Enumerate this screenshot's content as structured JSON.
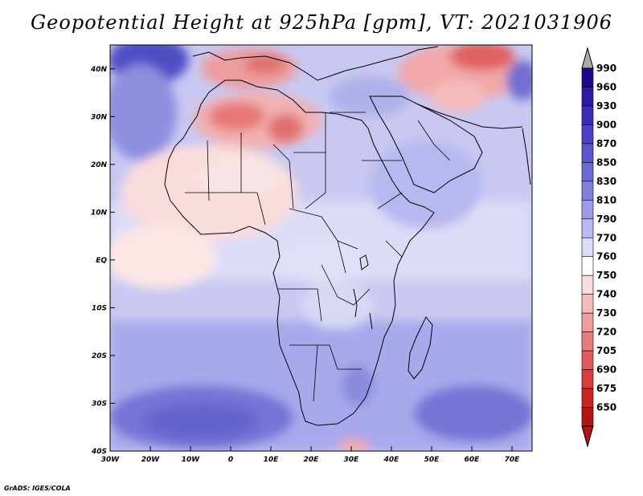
{
  "title": "Geopotential Height at 925hPa [gpm], VT: 2021031906",
  "credit": "GrADS: IGES/COLA",
  "map": {
    "lon_range": [
      -30,
      75
    ],
    "lat_range": [
      -40,
      45
    ],
    "x_ticks": [
      "30W",
      "20W",
      "10W",
      "0",
      "10E",
      "20E",
      "30E",
      "40E",
      "50E",
      "60E",
      "70E"
    ],
    "y_ticks": [
      "40N",
      "30N",
      "20N",
      "10N",
      "EQ",
      "10S",
      "20S",
      "30S",
      "40S"
    ]
  },
  "colorbar": {
    "labels": [
      "990",
      "960",
      "930",
      "900",
      "870",
      "850",
      "830",
      "810",
      "790",
      "770",
      "760",
      "750",
      "740",
      "730",
      "720",
      "705",
      "690",
      "675",
      "650"
    ],
    "colors": [
      "#1a0a8a",
      "#2a1aa6",
      "#3a2eb8",
      "#4a40c4",
      "#5a55cc",
      "#6a6ad4",
      "#8080dc",
      "#9c9ce6",
      "#babaf0",
      "#dcdcf8",
      "#ffffff",
      "#fadcdc",
      "#f4bcbc",
      "#ee9c9c",
      "#e87c7c",
      "#e05c5c",
      "#d83c3c",
      "#cc2424",
      "#b41414"
    ],
    "top_triangle_color": "#aaaaaa",
    "bottom_triangle_color": "#b41414"
  }
}
